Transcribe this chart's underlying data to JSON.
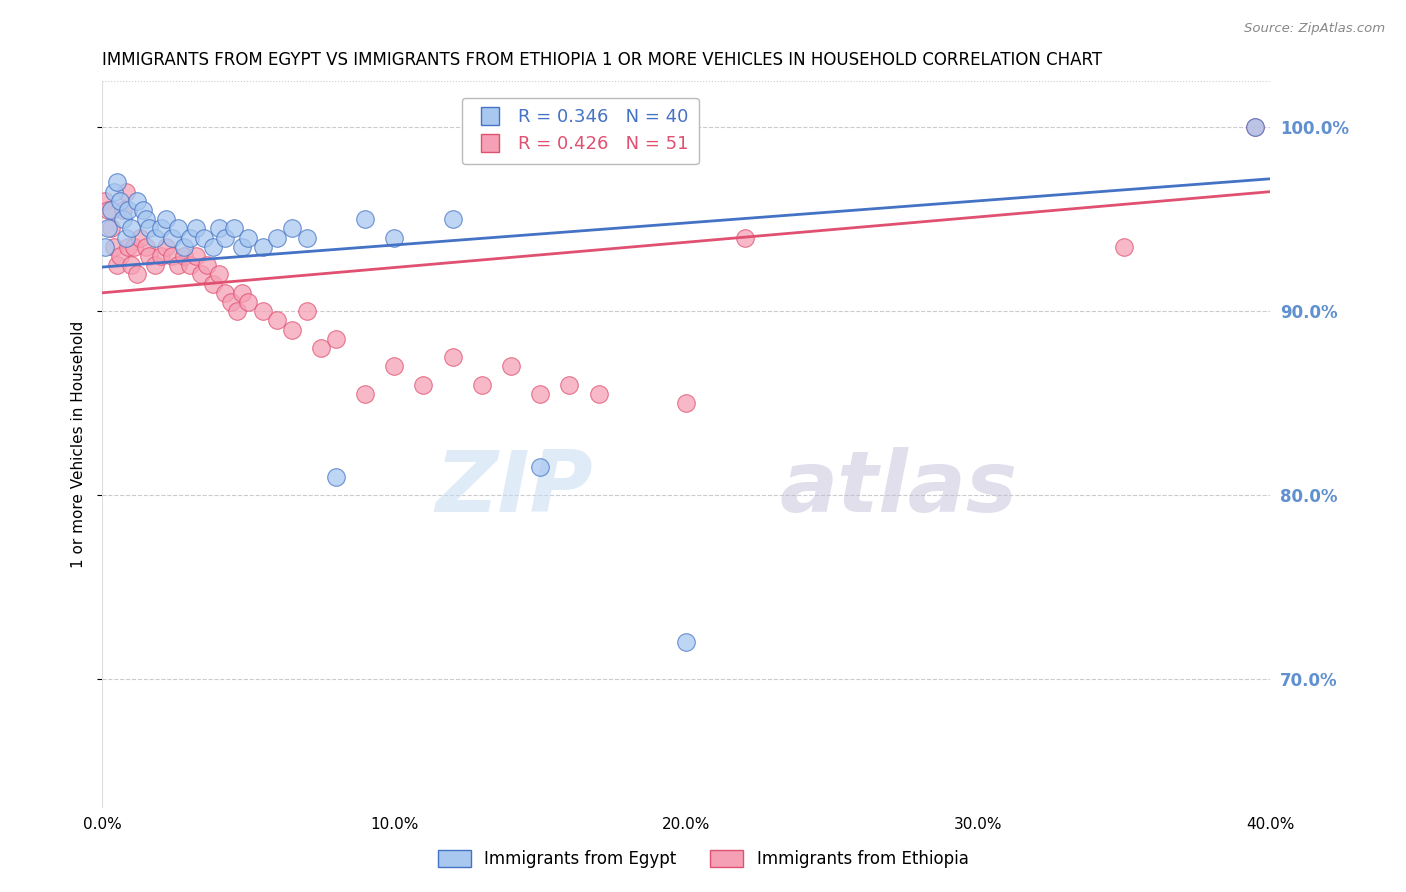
{
  "title": "IMMIGRANTS FROM EGYPT VS IMMIGRANTS FROM ETHIOPIA 1 OR MORE VEHICLES IN HOUSEHOLD CORRELATION CHART",
  "source": "Source: ZipAtlas.com",
  "ylabel": "1 or more Vehicles in Household",
  "xlim": [
    0.0,
    0.4
  ],
  "ylim": [
    0.63,
    1.025
  ],
  "yticks": [
    0.7,
    0.8,
    0.9,
    1.0
  ],
  "ytick_labels": [
    "70.0%",
    "80.0%",
    "90.0%",
    "100.0%"
  ],
  "xticks": [
    0.0,
    0.05,
    0.1,
    0.15,
    0.2,
    0.25,
    0.3,
    0.35,
    0.4
  ],
  "xtick_labels": [
    "0.0%",
    "",
    "10.0%",
    "",
    "20.0%",
    "",
    "30.0%",
    "",
    "40.0%"
  ],
  "egypt_color": "#A8C8F0",
  "ethiopia_color": "#F5A0B5",
  "egypt_R": 0.346,
  "egypt_N": 40,
  "ethiopia_R": 0.426,
  "ethiopia_N": 51,
  "trend_egypt_color": "#4472C4",
  "trend_ethiopia_color": "#E05070",
  "legend_egypt_label": "Immigrants from Egypt",
  "legend_ethiopia_label": "Immigrants from Ethiopia",
  "background_color": "#FFFFFF",
  "grid_color": "#CCCCCC",
  "axis_color": "#6090D0",
  "egypt_x": [
    0.001,
    0.002,
    0.003,
    0.004,
    0.005,
    0.006,
    0.007,
    0.008,
    0.009,
    0.01,
    0.012,
    0.014,
    0.015,
    0.016,
    0.018,
    0.02,
    0.022,
    0.024,
    0.026,
    0.028,
    0.03,
    0.032,
    0.035,
    0.038,
    0.04,
    0.042,
    0.045,
    0.048,
    0.05,
    0.055,
    0.06,
    0.065,
    0.07,
    0.08,
    0.09,
    0.1,
    0.12,
    0.15,
    0.2,
    0.395
  ],
  "egypt_y": [
    0.935,
    0.945,
    0.955,
    0.965,
    0.97,
    0.96,
    0.95,
    0.94,
    0.955,
    0.945,
    0.96,
    0.955,
    0.95,
    0.945,
    0.94,
    0.945,
    0.95,
    0.94,
    0.945,
    0.935,
    0.94,
    0.945,
    0.94,
    0.935,
    0.945,
    0.94,
    0.945,
    0.935,
    0.94,
    0.935,
    0.94,
    0.945,
    0.94,
    0.81,
    0.95,
    0.94,
    0.95,
    0.815,
    0.72,
    1.0
  ],
  "ethiopia_x": [
    0.001,
    0.002,
    0.003,
    0.004,
    0.005,
    0.006,
    0.007,
    0.008,
    0.009,
    0.01,
    0.011,
    0.012,
    0.013,
    0.015,
    0.016,
    0.018,
    0.02,
    0.022,
    0.024,
    0.026,
    0.028,
    0.03,
    0.032,
    0.034,
    0.036,
    0.038,
    0.04,
    0.042,
    0.044,
    0.046,
    0.048,
    0.05,
    0.055,
    0.06,
    0.065,
    0.07,
    0.075,
    0.08,
    0.09,
    0.1,
    0.11,
    0.12,
    0.13,
    0.14,
    0.15,
    0.16,
    0.17,
    0.2,
    0.22,
    0.35,
    0.395
  ],
  "ethiopia_y": [
    0.96,
    0.955,
    0.945,
    0.935,
    0.925,
    0.93,
    0.955,
    0.965,
    0.935,
    0.925,
    0.935,
    0.92,
    0.94,
    0.935,
    0.93,
    0.925,
    0.93,
    0.935,
    0.93,
    0.925,
    0.93,
    0.925,
    0.93,
    0.92,
    0.925,
    0.915,
    0.92,
    0.91,
    0.905,
    0.9,
    0.91,
    0.905,
    0.9,
    0.895,
    0.89,
    0.9,
    0.88,
    0.885,
    0.855,
    0.87,
    0.86,
    0.875,
    0.86,
    0.87,
    0.855,
    0.86,
    0.855,
    0.85,
    0.94,
    0.935,
    1.0
  ],
  "trend_egypt_x0": 0.0,
  "trend_egypt_x1": 0.4,
  "trend_egypt_y0": 0.924,
  "trend_egypt_y1": 0.972,
  "trend_ethiopia_x0": 0.0,
  "trend_ethiopia_x1": 0.4,
  "trend_ethiopia_y0": 0.91,
  "trend_ethiopia_y1": 0.965
}
